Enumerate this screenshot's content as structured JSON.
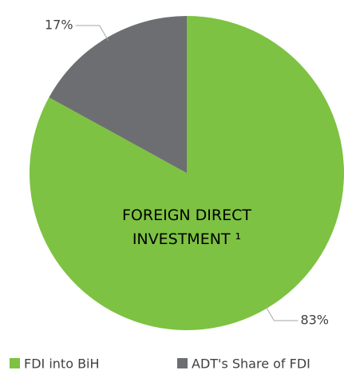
{
  "chart_data": {
    "type": "pie",
    "title": "FOREIGN DIRECT INVESTMENT ¹",
    "categories": [
      "FDI into BiH",
      "ADT's Share of FDI"
    ],
    "values": [
      83,
      17
    ],
    "value_labels": [
      "83%",
      "17%"
    ],
    "colors": [
      "#7dc242",
      "#6d6e71"
    ],
    "legend": "bottom"
  }
}
